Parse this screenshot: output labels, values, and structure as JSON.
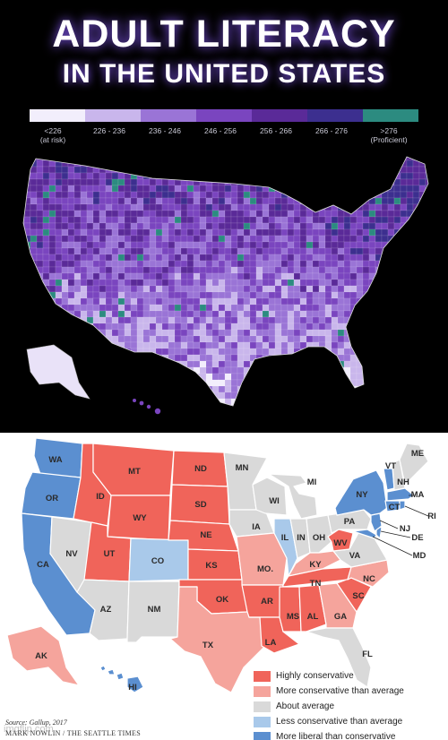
{
  "literacy": {
    "title_line1": "ADULT LITERACY",
    "title_line2": "IN THE UNITED STATES",
    "legend": [
      {
        "label": "<226",
        "sublabel": "(at risk)",
        "color": "#f2eefc"
      },
      {
        "label": "226 - 236",
        "sublabel": "",
        "color": "#c9b6ec"
      },
      {
        "label": "236 - 246",
        "sublabel": "",
        "color": "#9a74d6"
      },
      {
        "label": "246 - 256",
        "sublabel": "",
        "color": "#7a45bf"
      },
      {
        "label": "256 - 266",
        "sublabel": "",
        "color": "#5a2a98"
      },
      {
        "label": "266 - 276",
        "sublabel": "",
        "color": "#3c2f8f"
      },
      {
        "label": ">276",
        "sublabel": "(Proficient)",
        "color": "#2c8b80"
      }
    ]
  },
  "politics": {
    "colors": {
      "highly_conservative": "#f0645a",
      "more_conservative": "#f5a49c",
      "average": "#d9d9d9",
      "less_conservative": "#a9c9ea",
      "more_liberal": "#5b8fd0"
    },
    "legend": [
      {
        "label": "Highly conservative",
        "color": "#f0645a"
      },
      {
        "label": "More conservative than average",
        "color": "#f5a49c"
      },
      {
        "label": "About average",
        "color": "#d9d9d9"
      },
      {
        "label": "Less conservative than average",
        "color": "#a9c9ea"
      },
      {
        "label": "More liberal than conservative",
        "color": "#5b8fd0"
      }
    ],
    "states": [
      {
        "abbr": "WA",
        "cat": "more_liberal"
      },
      {
        "abbr": "OR",
        "cat": "more_liberal"
      },
      {
        "abbr": "CA",
        "cat": "more_liberal"
      },
      {
        "abbr": "NV",
        "cat": "average"
      },
      {
        "abbr": "ID",
        "cat": "highly_conservative"
      },
      {
        "abbr": "MT",
        "cat": "highly_conservative"
      },
      {
        "abbr": "WY",
        "cat": "highly_conservative"
      },
      {
        "abbr": "UT",
        "cat": "highly_conservative"
      },
      {
        "abbr": "AZ",
        "cat": "average"
      },
      {
        "abbr": "CO",
        "cat": "less_conservative"
      },
      {
        "abbr": "NM",
        "cat": "average"
      },
      {
        "abbr": "ND",
        "cat": "highly_conservative"
      },
      {
        "abbr": "SD",
        "cat": "highly_conservative"
      },
      {
        "abbr": "NE",
        "cat": "highly_conservative"
      },
      {
        "abbr": "KS",
        "cat": "highly_conservative"
      },
      {
        "abbr": "OK",
        "cat": "highly_conservative"
      },
      {
        "abbr": "TX",
        "cat": "more_conservative"
      },
      {
        "abbr": "MN",
        "cat": "average"
      },
      {
        "abbr": "IA",
        "cat": "average"
      },
      {
        "abbr": "MO.",
        "cat": "more_conservative"
      },
      {
        "abbr": "AR",
        "cat": "highly_conservative"
      },
      {
        "abbr": "LA",
        "cat": "highly_conservative"
      },
      {
        "abbr": "WI",
        "cat": "average"
      },
      {
        "abbr": "IL",
        "cat": "less_conservative"
      },
      {
        "abbr": "MI",
        "cat": "average"
      },
      {
        "abbr": "IN",
        "cat": "average"
      },
      {
        "abbr": "OH",
        "cat": "average"
      },
      {
        "abbr": "KY",
        "cat": "more_conservative"
      },
      {
        "abbr": "TN",
        "cat": "highly_conservative"
      },
      {
        "abbr": "MS",
        "cat": "highly_conservative"
      },
      {
        "abbr": "AL",
        "cat": "highly_conservative"
      },
      {
        "abbr": "GA",
        "cat": "more_conservative"
      },
      {
        "abbr": "FL",
        "cat": "average"
      },
      {
        "abbr": "SC",
        "cat": "highly_conservative"
      },
      {
        "abbr": "NC",
        "cat": "more_conservative"
      },
      {
        "abbr": "VA",
        "cat": "average"
      },
      {
        "abbr": "WV",
        "cat": "highly_conservative"
      },
      {
        "abbr": "PA",
        "cat": "average"
      },
      {
        "abbr": "NY",
        "cat": "more_liberal"
      },
      {
        "abbr": "VT",
        "cat": "more_liberal"
      },
      {
        "abbr": "NH",
        "cat": "average"
      },
      {
        "abbr": "ME",
        "cat": "average"
      },
      {
        "abbr": "MA",
        "cat": "more_liberal"
      },
      {
        "abbr": "RI",
        "cat": "more_liberal"
      },
      {
        "abbr": "CT",
        "cat": "more_liberal"
      },
      {
        "abbr": "NJ",
        "cat": "more_liberal"
      },
      {
        "abbr": "DE",
        "cat": "more_liberal"
      },
      {
        "abbr": "MD",
        "cat": "more_liberal"
      },
      {
        "abbr": "AK",
        "cat": "more_conservative"
      },
      {
        "abbr": "HI",
        "cat": "more_liberal"
      }
    ],
    "source": "Source: Gallup, 2017",
    "credit": "MARK NOWLIN / THE SEATTLE TIMES",
    "watermark": "imgflip.com"
  }
}
